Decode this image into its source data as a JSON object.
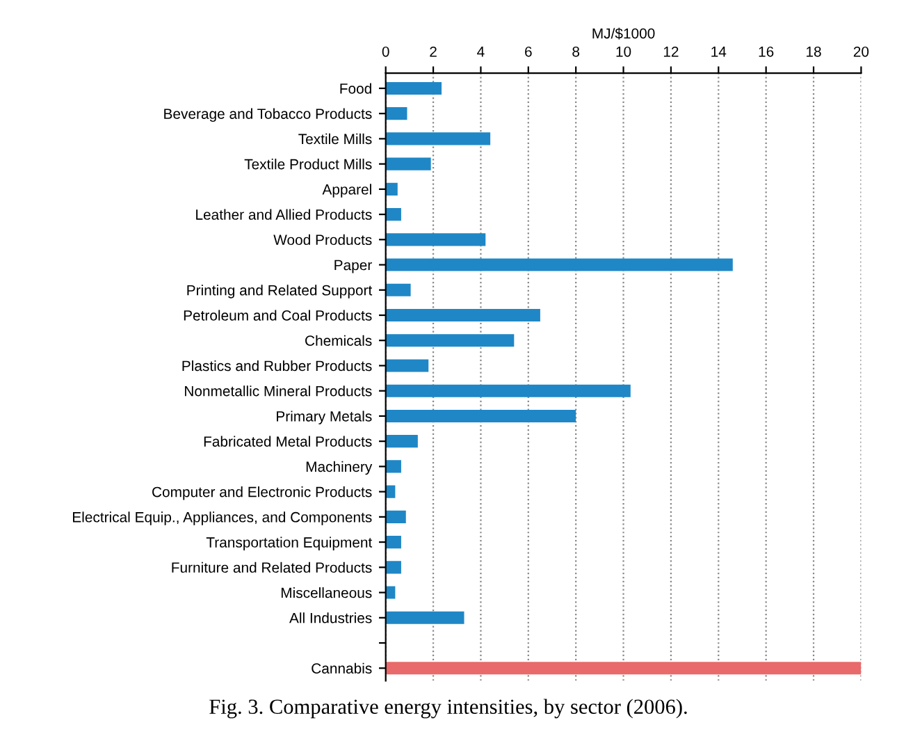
{
  "chart_data": {
    "type": "bar",
    "orientation": "horizontal",
    "xlabel": "MJ/$1000",
    "annotations": [
      "Fig. 3. Comparative energy intensities, by sector (2006)."
    ],
    "categories": [
      "Food",
      "Beverage and Tobacco Products",
      "Textile Mills",
      "Textile Product Mills",
      "Apparel",
      "Leather and Allied Products",
      "Wood Products",
      "Paper",
      "Printing and Related Support",
      "Petroleum and Coal Products",
      "Chemicals",
      "Plastics and Rubber Products",
      "Nonmetallic Mineral Products",
      "Primary Metals",
      "Fabricated Metal Products",
      "Machinery",
      "Computer and Electronic Products",
      "Electrical Equip., Appliances, and Components",
      "Transportation Equipment",
      "Furniture and Related Products",
      "Miscellaneous",
      "All Industries",
      null,
      "Cannabis"
    ],
    "values": [
      2.35,
      0.9,
      4.4,
      1.9,
      0.5,
      0.65,
      4.2,
      14.6,
      1.05,
      6.5,
      5.4,
      1.8,
      10.3,
      8.0,
      1.35,
      0.65,
      0.4,
      0.85,
      0.65,
      0.65,
      0.4,
      3.3,
      null,
      20.0
    ],
    "colors": [
      "#1f87c6",
      "#1f87c6",
      "#1f87c6",
      "#1f87c6",
      "#1f87c6",
      "#1f87c6",
      "#1f87c6",
      "#1f87c6",
      "#1f87c6",
      "#1f87c6",
      "#1f87c6",
      "#1f87c6",
      "#1f87c6",
      "#1f87c6",
      "#1f87c6",
      "#1f87c6",
      "#1f87c6",
      "#1f87c6",
      "#1f87c6",
      "#1f87c6",
      "#1f87c6",
      "#1f87c6",
      null,
      "#e86a6a"
    ],
    "xlim": [
      0,
      20
    ],
    "xticks": [
      0,
      2,
      4,
      6,
      8,
      10,
      12,
      14,
      16,
      18,
      20
    ],
    "grid": "x"
  }
}
